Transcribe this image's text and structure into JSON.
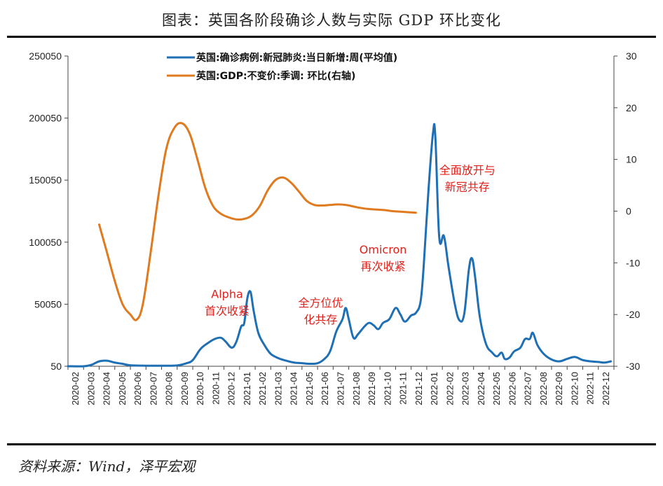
{
  "title": "图表：英国各阶段确诊人数与实际 GDP 环比变化",
  "source": "资料来源：Wind，泽平宏观",
  "chart_data": {
    "type": "line",
    "title": "图表：英国各阶段确诊人数与实际 GDP 环比变化",
    "x_categories": [
      "2020-02",
      "2020-03",
      "2020-04",
      "2020-05",
      "2020-06",
      "2020-07",
      "2020-08",
      "2020-09",
      "2020-10",
      "2020-11",
      "2020-12",
      "2021-01",
      "2021-02",
      "2021-03",
      "2021-04",
      "2021-05",
      "2021-06",
      "2021-07",
      "2021-08",
      "2021-09",
      "2021-10",
      "2021-11",
      "2021-12",
      "2022-01",
      "2022-02",
      "2022-03",
      "2022-04",
      "2022-05",
      "2022-06",
      "2022-07",
      "2022-08",
      "2022-09",
      "2022-10",
      "2022-11",
      "2022-12"
    ],
    "y_left": {
      "min": 50,
      "max": 250050,
      "ticks": [
        "250050",
        "200050",
        "150050",
        "100050",
        "50050",
        "50"
      ]
    },
    "y_right": {
      "min": -30,
      "max": 30,
      "ticks": [
        "30",
        "20",
        "10",
        "0",
        "-10",
        "-20",
        "-30"
      ]
    },
    "legend_position": "top-center",
    "series": [
      {
        "name": "英国:确诊病例:新冠肺炎:当日新增:周(平均值)",
        "axis": "left",
        "color": "#1f6fb5",
        "points": [
          [
            0,
            50
          ],
          [
            1,
            50
          ],
          [
            1.5,
            1200
          ],
          [
            2,
            4000
          ],
          [
            2.5,
            4500
          ],
          [
            3,
            3000
          ],
          [
            3.5,
            2000
          ],
          [
            4,
            800
          ],
          [
            5,
            500
          ],
          [
            6,
            500
          ],
          [
            7,
            700
          ],
          [
            7.6,
            2500
          ],
          [
            8,
            5000
          ],
          [
            8.5,
            14000
          ],
          [
            9,
            19000
          ],
          [
            9.4,
            22000
          ],
          [
            9.8,
            23000
          ],
          [
            10.1,
            20000
          ],
          [
            10.5,
            15000
          ],
          [
            10.8,
            20000
          ],
          [
            11.1,
            32000
          ],
          [
            11.3,
            35000
          ],
          [
            11.5,
            55000
          ],
          [
            11.7,
            60000
          ],
          [
            11.9,
            45000
          ],
          [
            12.2,
            27000
          ],
          [
            12.6,
            17000
          ],
          [
            13,
            10000
          ],
          [
            13.5,
            6500
          ],
          [
            14,
            4500
          ],
          [
            14.5,
            3000
          ],
          [
            15,
            2500
          ],
          [
            15.5,
            2000
          ],
          [
            16,
            2500
          ],
          [
            16.4,
            5500
          ],
          [
            16.8,
            12000
          ],
          [
            17.2,
            28000
          ],
          [
            17.6,
            38000
          ],
          [
            17.8,
            47000
          ],
          [
            18,
            38000
          ],
          [
            18.3,
            23000
          ],
          [
            18.6,
            26000
          ],
          [
            19,
            32000
          ],
          [
            19.3,
            35000
          ],
          [
            19.6,
            33000
          ],
          [
            19.9,
            30000
          ],
          [
            20.2,
            35000
          ],
          [
            20.6,
            38000
          ],
          [
            21,
            47000
          ],
          [
            21.3,
            42000
          ],
          [
            21.6,
            36000
          ],
          [
            22,
            41000
          ],
          [
            22.3,
            43000
          ],
          [
            22.6,
            52000
          ],
          [
            22.8,
            80000
          ],
          [
            23.1,
            140000
          ],
          [
            23.4,
            188000
          ],
          [
            23.55,
            185000
          ],
          [
            23.8,
            104000
          ],
          [
            24.1,
            105000
          ],
          [
            24.4,
            80000
          ],
          [
            24.8,
            50000
          ],
          [
            25.1,
            37000
          ],
          [
            25.4,
            42000
          ],
          [
            25.7,
            78000
          ],
          [
            25.9,
            87000
          ],
          [
            26.1,
            72000
          ],
          [
            26.4,
            40000
          ],
          [
            26.8,
            18000
          ],
          [
            27.2,
            11000
          ],
          [
            27.5,
            8000
          ],
          [
            27.8,
            11000
          ],
          [
            28,
            6000
          ],
          [
            28.3,
            7000
          ],
          [
            28.6,
            12000
          ],
          [
            29,
            15000
          ],
          [
            29.3,
            22000
          ],
          [
            29.6,
            22000
          ],
          [
            29.8,
            27000
          ],
          [
            30.1,
            17000
          ],
          [
            30.5,
            10000
          ],
          [
            31,
            5500
          ],
          [
            31.5,
            4000
          ],
          [
            32,
            6000
          ],
          [
            32.5,
            7500
          ],
          [
            33,
            5000
          ],
          [
            33.5,
            4000
          ],
          [
            34,
            3500
          ],
          [
            34.4,
            3000
          ],
          [
            34.8,
            4000
          ]
        ]
      },
      {
        "name": "英国:GDP:不变价:季调: 环比(右轴)",
        "axis": "right",
        "color": "#e07a1f",
        "points": [
          [
            2,
            -2.6
          ],
          [
            2.5,
            -8
          ],
          [
            3,
            -13.5
          ],
          [
            3.5,
            -18
          ],
          [
            4,
            -20
          ],
          [
            4.4,
            -21
          ],
          [
            4.8,
            -18
          ],
          [
            5.3,
            -8
          ],
          [
            5.8,
            3
          ],
          [
            6.3,
            12
          ],
          [
            6.8,
            16
          ],
          [
            7.3,
            17
          ],
          [
            7.8,
            15
          ],
          [
            8.3,
            10
          ],
          [
            8.8,
            4.5
          ],
          [
            9.3,
            1
          ],
          [
            9.8,
            -0.5
          ],
          [
            10.3,
            -1.2
          ],
          [
            10.8,
            -1.6
          ],
          [
            11.3,
            -1.5
          ],
          [
            11.8,
            -0.8
          ],
          [
            12.3,
            1
          ],
          [
            12.8,
            4
          ],
          [
            13.3,
            6
          ],
          [
            13.8,
            6.5
          ],
          [
            14.3,
            5.5
          ],
          [
            14.8,
            3.8
          ],
          [
            15.3,
            2
          ],
          [
            15.8,
            1.2
          ],
          [
            16.3,
            1.1
          ],
          [
            16.8,
            1.2
          ],
          [
            17.3,
            1.3
          ],
          [
            17.8,
            1.2
          ],
          [
            18.3,
            0.9
          ],
          [
            18.8,
            0.6
          ],
          [
            19.3,
            0.4
          ],
          [
            19.8,
            0.3
          ],
          [
            20.3,
            0.2
          ],
          [
            20.8,
            0
          ],
          [
            21.3,
            -0.1
          ],
          [
            21.8,
            -0.2
          ],
          [
            22.3,
            -0.3
          ]
        ]
      }
    ],
    "legend": [
      "英国:确诊病例:新冠肺炎:当日新增:周(平均值)",
      "英国:GDP:不变价:季调: 环比(右轴)"
    ],
    "annotations": [
      {
        "lines": [
          "Alpha",
          "首次收紧"
        ],
        "x": 10.2,
        "y": 55000
      },
      {
        "lines": [
          "全方位优",
          "化共存"
        ],
        "x": 16.2,
        "y": 48000
      },
      {
        "lines": [
          "Omicron",
          "再次收紧"
        ],
        "x": 20.2,
        "y": 91000
      },
      {
        "lines": [
          "全面放开与",
          "新冠共存"
        ],
        "x": 25.6,
        "y": 155000
      }
    ]
  }
}
